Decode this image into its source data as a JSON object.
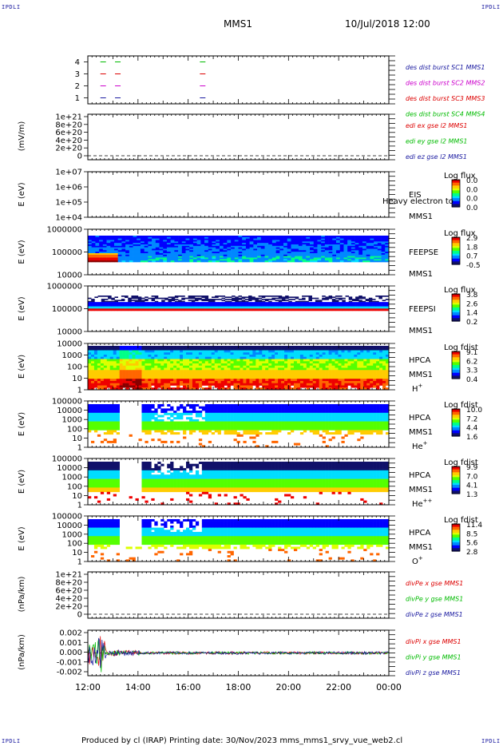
{
  "page": {
    "corner_label": "IPDLI",
    "title": "MMS1",
    "datetime": "10/Jul/2018 12:00",
    "footer": "Produced by cl (IRAP)   Printing date: 30/Nov/2023   mms_mms1_srvy_vue_web2.cl"
  },
  "colors": {
    "blue": "#1a1aa0",
    "magenta": "#cc00cc",
    "red": "#dd0000",
    "green": "#00bb00",
    "colorbar": [
      "#10106a",
      "#0000ff",
      "#0088ff",
      "#00ddff",
      "#00ff88",
      "#55ff00",
      "#ddff00",
      "#ffcc00",
      "#ff6600",
      "#ee0000",
      "#880000"
    ]
  },
  "chart_data": [
    {
      "type": "line",
      "name": "burst-availability",
      "xlim": [
        "12:00",
        "00:00"
      ],
      "ylim": [
        0.5,
        4.5
      ],
      "yticks": [
        "4",
        "3",
        "2",
        "1"
      ],
      "burst_start_times": [
        "12:30",
        "13:05",
        "16:28"
      ],
      "series": [
        {
          "name": "des dist burst SC1 MMS1",
          "level": 1,
          "color": "blue"
        },
        {
          "name": "des dist burst SC2 MMS2",
          "level": 2,
          "color": "magenta"
        },
        {
          "name": "des dist burst SC3 MMS3",
          "level": 3,
          "color": "red"
        },
        {
          "name": "des dist burst SC4 MMS4",
          "level": 4,
          "color": "green"
        }
      ]
    },
    {
      "type": "line",
      "name": "edi-efield",
      "ylabel": "(mV/m)",
      "ylim": [
        0,
        1.1e+21
      ],
      "yticks": [
        "1e+21",
        "8e+20",
        "6e+20",
        "4e+20",
        "2e+20",
        "0"
      ],
      "series": [
        {
          "name": "edi ex gse l2 MMS1",
          "color": "red"
        },
        {
          "name": "edi ey gse l2 MMS1",
          "color": "green"
        },
        {
          "name": "edi ez gse l2 MMS1",
          "color": "blue"
        }
      ]
    },
    {
      "type": "heatmap",
      "name": "eis",
      "ylabel": "E (eV)",
      "ylim": [
        "1e+04",
        "1e+07"
      ],
      "yticks": [
        "1e+07",
        "1e+06",
        "1e+05",
        "1e+04"
      ],
      "label_lines": [
        "EIS",
        "MMS1"
      ],
      "overlay_text": "Heavy electron to",
      "colorbar_title": "Log flux",
      "colorbar_ticks": [
        "0.0",
        "0.0",
        "0.0",
        "0.0"
      ],
      "empty": true
    },
    {
      "type": "heatmap",
      "name": "feeps-electrons",
      "ylabel": "E (eV)",
      "ylim": [
        10000,
        1000000
      ],
      "yticks": [
        "1000000",
        "100000",
        "10000"
      ],
      "label_lines": [
        "FEEPSE",
        "MMS1"
      ],
      "colorbar_title": "Log flux",
      "colorbar_ticks": [
        "2.9",
        "1.8",
        "0.7",
        "-0.5"
      ]
    },
    {
      "type": "heatmap",
      "name": "feeps-ions",
      "ylabel": "E (eV)",
      "ylim": [
        10000,
        1000000
      ],
      "yticks": [
        "1000000",
        "100000",
        "10000"
      ],
      "label_lines": [
        "FEEPSI",
        "MMS1"
      ],
      "colorbar_title": "Log flux",
      "colorbar_ticks": [
        "3.8",
        "2.6",
        "1.4",
        "0.2"
      ]
    },
    {
      "type": "heatmap",
      "name": "hpca-h",
      "ylabel": "E (eV)",
      "ylim": [
        1,
        30000
      ],
      "yticks": [
        "10000",
        "1000",
        "100",
        "10",
        "1"
      ],
      "label_lines": [
        "HPCA",
        "MMS1",
        "H+"
      ],
      "colorbar_title": "Log fdist",
      "colorbar_ticks": [
        "9.1",
        "6.2",
        "3.3",
        "0.4"
      ]
    },
    {
      "type": "heatmap",
      "name": "hpca-he",
      "ylabel": "E (eV)",
      "ylim": [
        1,
        100000
      ],
      "yticks": [
        "100000",
        "10000",
        "1000",
        "100",
        "10",
        "1"
      ],
      "label_lines": [
        "HPCA",
        "MMS1",
        "He+"
      ],
      "colorbar_title": "Log fdist",
      "colorbar_ticks": [
        "10.0",
        "7.2",
        "4.4",
        "1.6"
      ]
    },
    {
      "type": "heatmap",
      "name": "hpca-he2",
      "ylabel": "E (eV)",
      "ylim": [
        1,
        100000
      ],
      "yticks": [
        "100000",
        "10000",
        "1000",
        "100",
        "10",
        "1"
      ],
      "label_lines": [
        "HPCA",
        "MMS1",
        "He++"
      ],
      "colorbar_title": "Log fdist",
      "colorbar_ticks": [
        "9.9",
        "7.0",
        "4.1",
        "1.3"
      ]
    },
    {
      "type": "heatmap",
      "name": "hpca-o",
      "ylabel": "E (eV)",
      "ylim": [
        1,
        100000
      ],
      "yticks": [
        "100000",
        "10000",
        "1000",
        "100",
        "10",
        "1"
      ],
      "label_lines": [
        "HPCA",
        "MMS1",
        "O+"
      ],
      "colorbar_title": "Log fdist",
      "colorbar_ticks": [
        "11.4",
        "8.5",
        "5.6",
        "2.8"
      ]
    },
    {
      "type": "line",
      "name": "divpe",
      "ylabel": "(nPa/km)",
      "ylim": [
        0,
        1.1e+21
      ],
      "yticks": [
        "1e+21",
        "8e+20",
        "6e+20",
        "4e+20",
        "2e+20",
        "0"
      ],
      "series": [
        {
          "name": "divPe x gse MMS1",
          "color": "red"
        },
        {
          "name": "divPe y gse MMS1",
          "color": "green"
        },
        {
          "name": "divPe z gse MMS1",
          "color": "blue"
        }
      ]
    },
    {
      "type": "line",
      "name": "divpi",
      "ylabel": "(nPa/km)",
      "ylim": [
        -0.002,
        0.002
      ],
      "yticks": [
        "0.002",
        "0.001",
        "0.000",
        "-0.001",
        "-0.002"
      ],
      "xticks": [
        "12:00",
        "14:00",
        "16:00",
        "18:00",
        "20:00",
        "22:00",
        "00:00"
      ],
      "series": [
        {
          "name": "divPi x gse MMS1",
          "color": "red"
        },
        {
          "name": "divPi y gse MMS1",
          "color": "green"
        },
        {
          "name": "divPi z gse MMS1",
          "color": "blue"
        }
      ]
    }
  ]
}
